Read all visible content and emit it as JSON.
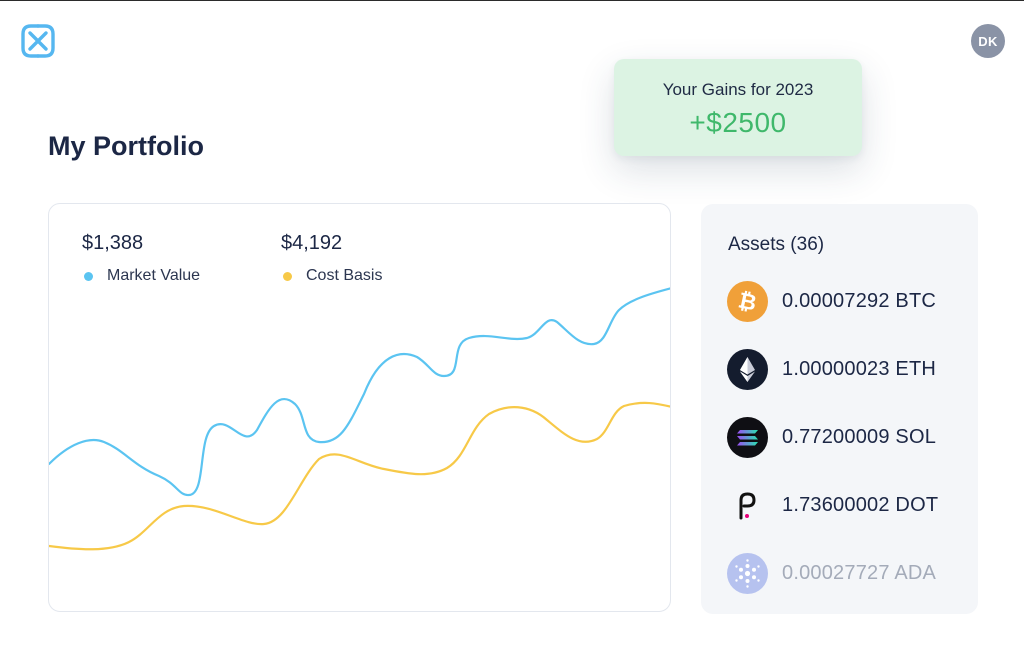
{
  "header": {
    "logo_icon": "link-loop-logo-icon",
    "avatar_initials": "DK"
  },
  "gains": {
    "label": "Your Gains for 2023",
    "value": "+$2500"
  },
  "page_title": "My Portfolio",
  "chart": {
    "market_value": "$1,388",
    "market_label": "Market Value",
    "cost_value": "$4,192",
    "cost_label": "Cost Basis",
    "colors": {
      "market": "#5bc4f1",
      "cost": "#f7c948"
    }
  },
  "assets": {
    "title": "Assets (36)",
    "items": [
      {
        "amount": "0.00007292 BTC",
        "icon": "bitcoin-icon"
      },
      {
        "amount": "1.00000023 ETH",
        "icon": "ethereum-icon"
      },
      {
        "amount": "0.77200009 SOL",
        "icon": "solana-icon"
      },
      {
        "amount": "1.73600002 DOT",
        "icon": "polkadot-icon"
      },
      {
        "amount": "0.00027727 ADA",
        "icon": "cardano-icon"
      }
    ]
  }
}
